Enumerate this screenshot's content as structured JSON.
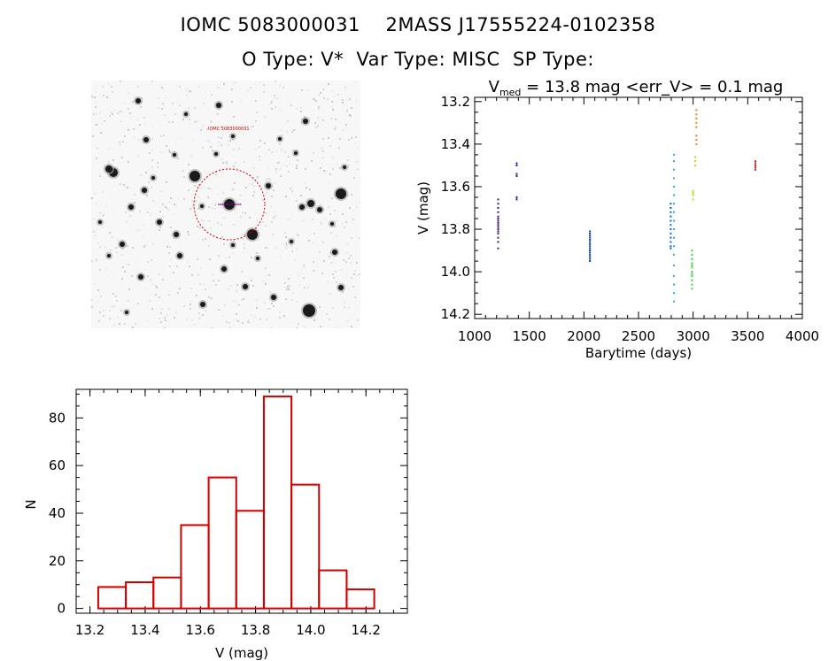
{
  "header": {
    "line1": "IOMC 5083000031    2MASS J17555224-0102358",
    "line2": "O Type: V*  Var Type: MISC  SP Type:"
  },
  "sky_image": {
    "label": "IOMC 5083000031 field",
    "target_label": "IOMC 5083000031"
  },
  "chart_data": [
    {
      "type": "scatter",
      "title_prefix": "V",
      "title_subscript": "med",
      "title_rest": " = 13.8 mag <err_V> = 0.1 mag",
      "xlabel": "Barytime (days)",
      "ylabel": "V (mag)",
      "xlim": [
        1000,
        4000
      ],
      "ylim": [
        14.22,
        13.18
      ],
      "y_inverted": true,
      "x_ticks": [
        1000,
        1500,
        2000,
        2500,
        3000,
        3500,
        4000
      ],
      "y_ticks": [
        "13.2",
        "13.4",
        "13.6",
        "13.8",
        "14.0",
        "14.2"
      ],
      "groups": [
        {
          "x": 1215,
          "color": "#3a1a78",
          "values": [
            13.66,
            13.68,
            13.7,
            13.72,
            13.74,
            13.75,
            13.76,
            13.77,
            13.78,
            13.79,
            13.8,
            13.81,
            13.82,
            13.84,
            13.86,
            13.89
          ]
        },
        {
          "x": 1385,
          "color": "#1a1a90",
          "values": [
            13.49,
            13.5,
            13.54,
            13.55,
            13.65,
            13.66
          ]
        },
        {
          "x": 2055,
          "color": "#1040c0",
          "values": [
            13.81,
            13.82,
            13.83,
            13.84,
            13.85,
            13.86,
            13.87,
            13.88,
            13.89,
            13.9,
            13.91,
            13.92,
            13.93,
            13.94,
            13.95
          ]
        },
        {
          "x": 2795,
          "color": "#1060d0",
          "values": [
            13.68,
            13.7,
            13.72,
            13.74,
            13.76,
            13.78,
            13.8,
            13.82,
            13.84,
            13.86,
            13.88,
            13.89
          ]
        },
        {
          "x": 2825,
          "color": "#20b0e0",
          "values": [
            13.45,
            13.48,
            13.52,
            13.56,
            13.6,
            13.64,
            13.68,
            13.72,
            13.76,
            13.8,
            13.84,
            13.88,
            13.92,
            13.97,
            14.02,
            14.06,
            14.1,
            14.14
          ]
        },
        {
          "x": 2990,
          "color": "#40d040",
          "values": [
            13.9,
            13.92,
            13.94,
            13.96,
            13.98,
            14.0,
            14.02,
            14.04,
            14.06,
            14.08,
            13.94,
            13.97,
            14.01
          ]
        },
        {
          "x": 3000,
          "color": "#a0e020",
          "values": [
            13.62,
            13.63,
            13.64,
            13.66
          ]
        },
        {
          "x": 3020,
          "color": "#e0c020",
          "values": [
            13.46,
            13.48,
            13.5
          ]
        },
        {
          "x": 3030,
          "color": "#f08020",
          "values": [
            13.24,
            13.26,
            13.28,
            13.3,
            13.32,
            13.36,
            13.38,
            13.4
          ]
        },
        {
          "x": 3570,
          "color": "#c02020",
          "values": [
            13.48,
            13.49,
            13.5,
            13.51,
            13.52
          ]
        }
      ]
    },
    {
      "type": "bar",
      "xlabel": "V (mag)",
      "ylabel": "N",
      "xlim": [
        13.15,
        14.35
      ],
      "ylim": [
        -2,
        92
      ],
      "x_ticks": [
        "13.2",
        "13.4",
        "13.6",
        "13.8",
        "14.0",
        "14.2"
      ],
      "y_ticks": [
        "0",
        "20",
        "40",
        "60",
        "80"
      ],
      "bar_color": "#d00000",
      "bin_edges": [
        13.23,
        13.33,
        13.43,
        13.53,
        13.63,
        13.73,
        13.83,
        13.93,
        14.03,
        14.13,
        14.23
      ],
      "values": [
        9,
        11,
        13,
        35,
        55,
        41,
        89,
        52,
        16,
        8
      ]
    }
  ]
}
